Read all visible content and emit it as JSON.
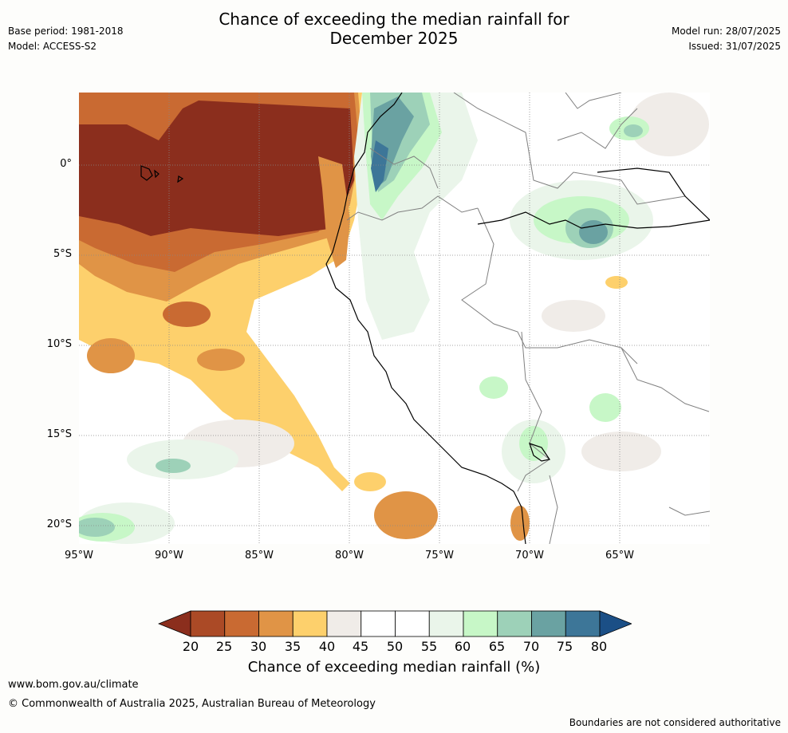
{
  "header": {
    "title_line1": "Chance of exceeding the median rainfall for",
    "title_line2": "December 2025",
    "base_period": "Base period: 1981-2018",
    "model": "Model: ACCESS-S2",
    "model_run": "Model run: 28/07/2025",
    "issued": "Issued: 31/07/2025"
  },
  "map": {
    "lat_labels": [
      "0°",
      "5°S",
      "10°S",
      "15°S",
      "20°S"
    ],
    "lon_labels": [
      "95°W",
      "90°W",
      "85°W",
      "80°W",
      "75°W",
      "70°W",
      "65°W"
    ]
  },
  "legend": {
    "title": "Chance of exceeding median rainfall (%)",
    "labels": [
      "20",
      "25",
      "30",
      "35",
      "40",
      "45",
      "50",
      "55",
      "60",
      "65",
      "70",
      "75",
      "80"
    ],
    "colors": [
      "#8b2e1d",
      "#ab4a26",
      "#c96a32",
      "#e09446",
      "#fdd06c",
      "#f0ece8",
      "#ffffff",
      "#ffffff",
      "#eaf5ea",
      "#c7f7c7",
      "#9dd1b8",
      "#6aa2a2",
      "#3d7698",
      "#1b4f86"
    ]
  },
  "footer": {
    "url": "www.bom.gov.au/climate",
    "copyright": "© Commonwealth of Australia 2025, Australian Bureau of Meteorology",
    "note": "Boundaries are not considered authoritative"
  }
}
